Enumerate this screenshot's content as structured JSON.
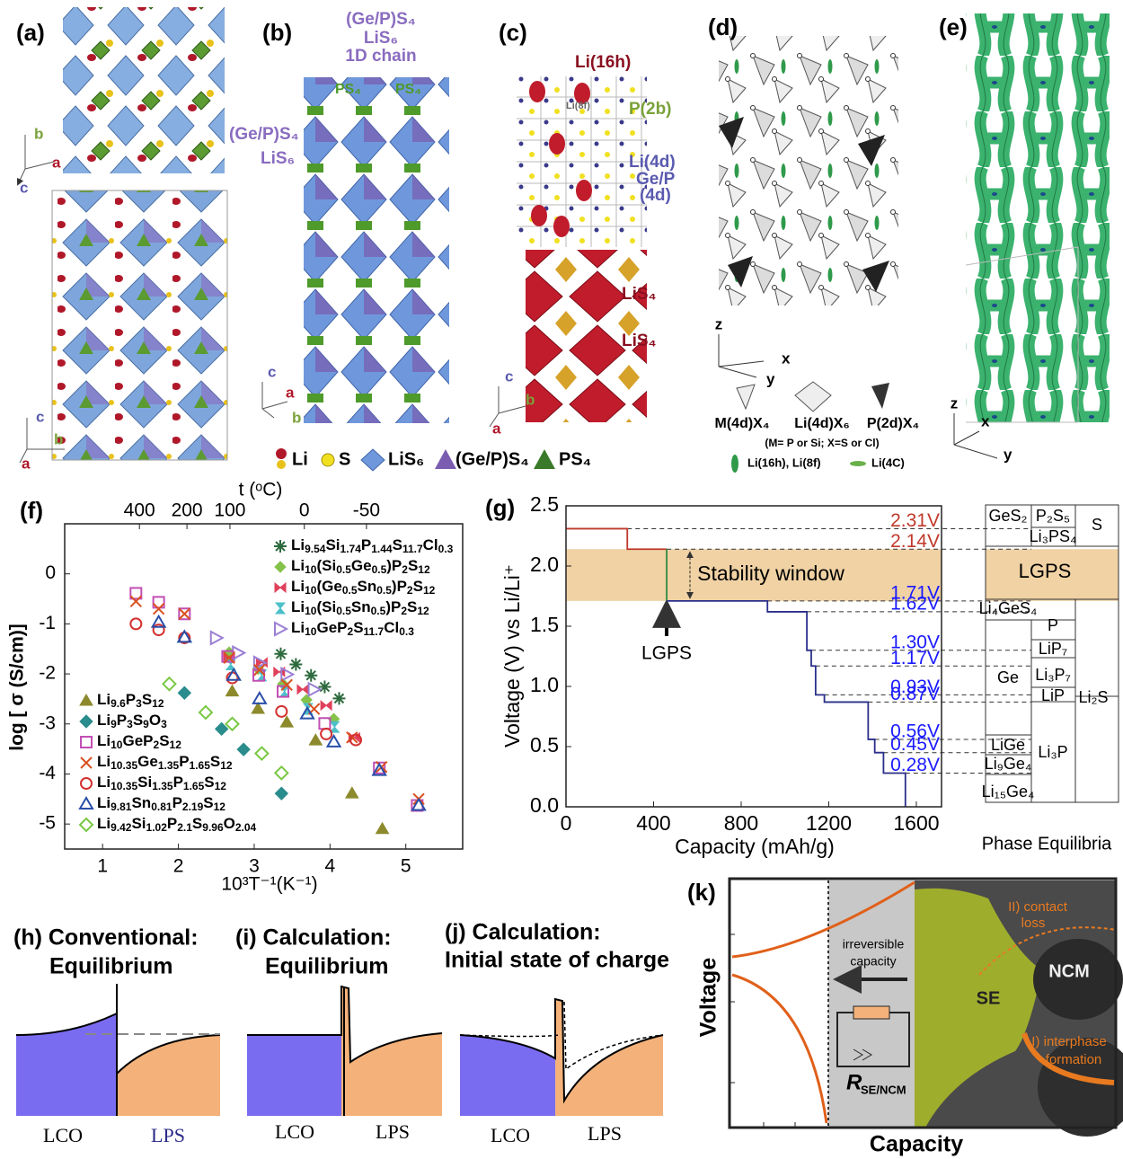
{
  "panels": {
    "a": {
      "label": "(a)",
      "axes_top": [
        "b",
        "a",
        "c"
      ],
      "axes_bottom": [
        "c",
        "b",
        "a"
      ]
    },
    "b": {
      "label": "(b)",
      "texts": [
        "(Ge/P)S₄",
        "LiS₆",
        "1D chain",
        "PS₄",
        "PS₄",
        "(Ge/P)S₄",
        "LiS₆"
      ],
      "axes": [
        "c",
        "a",
        "b"
      ]
    },
    "legend": [
      "Li",
      "S",
      "LiS₆",
      "(Ge/P)S₄",
      "PS₄"
    ],
    "c": {
      "label": "(c)",
      "texts": [
        "Li(16h)",
        "Li(8f)",
        "P(2b)",
        "Li(4d)",
        "Ge/P",
        "(4d)",
        "LiS₄",
        "LiS₄"
      ],
      "axes": [
        "c",
        "b",
        "a"
      ]
    },
    "d": {
      "label": "(d)",
      "axes": [
        "z",
        "x",
        "y"
      ],
      "units": [
        "M(4d)X₄",
        "Li(4d)X₆",
        "P(2d)X₄"
      ],
      "note": "(M= P or Si; X=S or Cl)",
      "key": [
        "Li(16h), Li(8f)",
        "Li(4C)"
      ]
    },
    "e": {
      "label": "(e)",
      "axes": [
        "z",
        "x",
        "y"
      ]
    },
    "h": {
      "label": "(h) Conventional:",
      "sub": "Equilibrium",
      "left": "LCO",
      "right": "LPS"
    },
    "i": {
      "label": "(i) Calculation:",
      "sub": "Equilibrium",
      "left": "LCO",
      "right": "LPS"
    },
    "j": {
      "label": "(j) Calculation:",
      "sub": "Initial state of charge",
      "left": "LCO",
      "right": "LPS"
    },
    "k": {
      "label": "(k)",
      "y_label": "Voltage",
      "x_label": "Capacity",
      "texts": [
        "irreversible",
        "capacity",
        "II) contact",
        "loss",
        "NCM",
        "SE",
        "I) interphase",
        "formation"
      ],
      "resistor": "R",
      "resistor_sub": "SE/NCM"
    }
  },
  "chart_data": [
    {
      "type": "scatter",
      "panel_label": "(f)",
      "x_label": "10³T⁻¹(K⁻¹)",
      "y_label": "log [ σ (S/cm)]",
      "x2_label": "t (ᵒC)",
      "xlim": [
        0.5,
        5.75
      ],
      "ylim": [
        -5.5,
        1.0
      ],
      "xticks": [
        1,
        2,
        3,
        4,
        5
      ],
      "yticks": [
        0,
        -1,
        -2,
        -3,
        -4,
        -5
      ],
      "x2ticks": [
        {
          "value": 1.486,
          "label": "400"
        },
        {
          "value": 2.113,
          "label": "200"
        },
        {
          "value": 2.68,
          "label": "100"
        },
        {
          "value": 3.661,
          "label": "0"
        },
        {
          "value": 4.481,
          "label": "-50"
        }
      ],
      "series": [
        {
          "name": "Li9.54Si1.74P1.44S11.7Cl0.3",
          "color": "#2d6a3e",
          "marker": "asterisk",
          "x": [
            3.35,
            3.55,
            3.75,
            3.93,
            4.12
          ],
          "values": [
            -1.6,
            -1.81,
            -2.03,
            -2.26,
            -2.49
          ]
        },
        {
          "name": "Li10(Si0.5Ge0.5)P2S12",
          "color": "#86c24a",
          "marker": "plus-diamond",
          "x": [
            2.67,
            3.05,
            3.38,
            3.69,
            4.05
          ],
          "values": [
            -1.57,
            -1.9,
            -2.2,
            -2.52,
            -2.9
          ]
        },
        {
          "name": "Li10(Ge0.5Sn0.5)P2S12",
          "color": "#e0405a",
          "marker": "bowtie",
          "x": [
            2.67,
            3.1,
            3.33,
            3.64,
            3.95,
            4.32
          ],
          "values": [
            -1.66,
            -1.77,
            -1.96,
            -2.31,
            -2.63,
            -3.27
          ]
        },
        {
          "name": "Li10(Si0.5Sn0.5)P2S12",
          "color": "#4cc0c8",
          "marker": "hourglass",
          "x": [
            2.69,
            3.1,
            3.4,
            3.71,
            4.06
          ],
          "values": [
            -1.81,
            -2.03,
            -2.35,
            -2.7,
            -3.06
          ]
        },
        {
          "name": "Li10GeP2S11.7Cl0.3",
          "color": "#9b7fd4",
          "marker": "tri-right",
          "x": [
            2.5,
            2.79,
            3.07,
            3.43,
            3.79
          ],
          "values": [
            -1.28,
            -1.58,
            -1.78,
            -2.01,
            -2.31
          ]
        },
        {
          "name": "Li9.6P3S12",
          "color": "#8c8a2c",
          "marker": "triangle",
          "x": [
            2.71,
            3.05,
            3.43,
            3.81,
            4.29,
            4.69
          ],
          "values": [
            -2.35,
            -2.7,
            -2.97,
            -3.33,
            -4.39,
            -5.1
          ]
        },
        {
          "name": "Li9P3S9O3",
          "color": "#2a8c8c",
          "marker": "diamond",
          "x": [
            2.08,
            2.57,
            2.86,
            3.36
          ],
          "values": [
            -2.38,
            -3.1,
            -3.51,
            -4.39
          ]
        },
        {
          "name": "Li10GeP2S12",
          "color": "#c24fb4",
          "marker": "square",
          "x": [
            1.44,
            1.74,
            2.08,
            2.65,
            3.06,
            3.38,
            3.93,
            4.65,
            5.15
          ],
          "values": [
            -0.39,
            -0.57,
            -0.8,
            -1.65,
            -2.03,
            -2.35,
            -2.99,
            -3.88,
            -4.63
          ]
        },
        {
          "name": "Li10.35Ge1.35P1.65S12",
          "color": "#d9501f",
          "marker": "x",
          "x": [
            1.44,
            1.74,
            2.08,
            2.67,
            3.07,
            3.43,
            3.79,
            4.29,
            4.68,
            5.17
          ],
          "values": [
            -0.55,
            -0.7,
            -0.8,
            -1.68,
            -1.92,
            -2.22,
            -2.7,
            -3.27,
            -3.86,
            -4.5
          ]
        },
        {
          "name": "Li10.35Si1.35P1.65S12",
          "color": "#d43030",
          "marker": "circle",
          "x": [
            1.44,
            1.74,
            2.08,
            2.71,
            3.36,
            3.95,
            4.34
          ],
          "values": [
            -1.0,
            -1.12,
            -1.28,
            -2.08,
            -2.75,
            -3.2,
            -3.32
          ]
        },
        {
          "name": "Li9.81Sn0.81P2.19S12",
          "color": "#2a4fa8",
          "marker": "triangle-open",
          "x": [
            1.74,
            2.08,
            2.73,
            3.07,
            3.7,
            4.05,
            4.65,
            5.17
          ],
          "values": [
            -0.97,
            -1.27,
            -2.03,
            -2.5,
            -2.8,
            -3.36,
            -3.93,
            -4.63
          ]
        },
        {
          "name": "Li9.42Si1.02P2.1S9.96O2.04",
          "color": "#79c843",
          "marker": "diamond-open",
          "x": [
            1.88,
            2.36,
            2.71,
            3.1,
            3.36
          ],
          "values": [
            -2.2,
            -2.77,
            -3.0,
            -3.59,
            -3.98
          ]
        }
      ]
    },
    {
      "type": "line",
      "panel_label": "(g)",
      "x_label": "Capacity (mAh/g)",
      "y_label": "Voltage (V) vs Li/Li⁺",
      "xlim": [
        0,
        1715
      ],
      "ylim": [
        0,
        2.5
      ],
      "xticks": [
        0,
        400,
        800,
        1200,
        1600
      ],
      "yticks": [
        {
          "value": 0,
          "label": "0.0"
        },
        0.5,
        {
          "value": 1,
          "label": "1.0"
        },
        1.5,
        {
          "value": 2,
          "label": "2.0"
        },
        2.5
      ],
      "band": {
        "from": 1.71,
        "to": 2.14,
        "label": "Stability window",
        "color": "#f0d2a4"
      },
      "arrow_label": "LGPS",
      "series": [
        {
          "color": "#c0392b",
          "x": [
            0,
            280,
            280,
            460
          ],
          "values": [
            2.31,
            2.31,
            2.14,
            2.14
          ]
        },
        {
          "color": "#2e8b3e",
          "x": [
            460,
            460
          ],
          "values": [
            2.14,
            1.71
          ]
        },
        {
          "color": "#2a2f8a",
          "x": [
            460,
            920,
            920,
            1100,
            1100,
            1120,
            1120,
            1140,
            1140,
            1180,
            1180,
            1380,
            1380,
            1410,
            1410,
            1450,
            1450,
            1550,
            1550
          ],
          "values": [
            1.71,
            1.71,
            1.62,
            1.62,
            1.3,
            1.3,
            1.17,
            1.17,
            0.93,
            0.93,
            0.87,
            0.87,
            0.56,
            0.56,
            0.45,
            0.45,
            0.28,
            0.28,
            0
          ]
        }
      ],
      "voltage_labels": {
        "values": [
          2.31,
          2.14,
          1.71,
          1.62,
          1.3,
          1.17,
          0.93,
          0.87,
          0.56,
          0.45,
          0.28
        ],
        "value_labels": [
          "2.31V",
          "2.14V",
          "1.71V",
          "1.62V",
          "1.30V",
          "1.17V",
          "0.93V",
          "0.87V",
          "0.56V",
          "0.45V",
          "0.28V"
        ],
        "colors": [
          "#c0392b",
          "#c0392b",
          "#1a1aff",
          "#1a1aff",
          "#1a1aff",
          "#1a1aff",
          "#1a1aff",
          "#1a1aff",
          "#1a1aff",
          "#1a1aff",
          "#1a1aff"
        ]
      },
      "phase_equilibria": {
        "title": "Phase Equilibria",
        "labels": [
          "GeS₂",
          "P₂S₅",
          "S",
          "Li₃PS₄",
          "LGPS",
          "Li₄GeS₄",
          "P",
          "LiP₇",
          "Ge",
          "Li₃P₇",
          "LiP",
          "Li₂S",
          "LiGe",
          "Li₃P",
          "Li₉Ge₄",
          "Li₁₅Ge₄"
        ]
      }
    }
  ]
}
